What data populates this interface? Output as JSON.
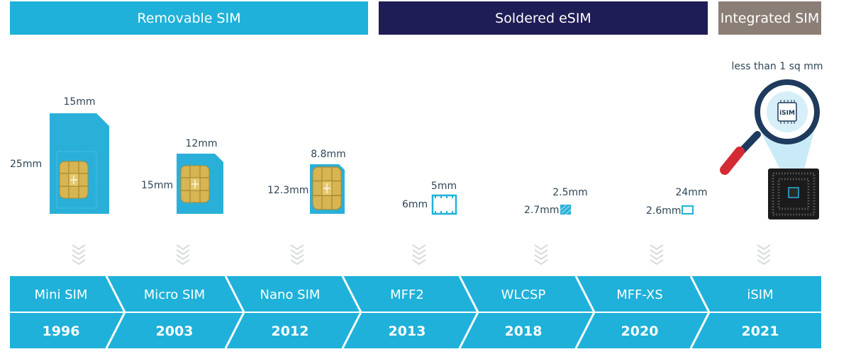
{
  "bands": {
    "removable": "Removable SIM",
    "soldered": "Soldered eSIM",
    "integrated": "Integrated SIM"
  },
  "dims": {
    "mini_w": "15mm",
    "mini_h": "25mm",
    "micro_w": "12mm",
    "micro_h": "15mm",
    "nano_w": "8.8mm",
    "nano_h": "12.3mm",
    "mff2_w": "5mm",
    "mff2_h": "6mm",
    "wlcsp_w": "2.5mm",
    "wlcsp_h": "2.7mm",
    "mffxs_w": "24mm",
    "mffxs_h": "2.6mm",
    "isim_size": "less than 1 sq mm",
    "isim_chip": "iSIM"
  },
  "timeline": [
    {
      "name": "Mini SIM",
      "year": "1996"
    },
    {
      "name": "Micro SIM",
      "year": "2003"
    },
    {
      "name": "Nano SIM",
      "year": "2012"
    },
    {
      "name": "MFF2",
      "year": "2013"
    },
    {
      "name": "WLCSP",
      "year": "2018"
    },
    {
      "name": "MFF-XS",
      "year": "2020"
    },
    {
      "name": "iSIM",
      "year": "2021"
    }
  ],
  "colors": {
    "removable": "#1fb1d9",
    "soldered": "#1e1d56",
    "integrated": "#8b7e76",
    "card": "#2ab0d8",
    "chip_gold": "#d6b552"
  }
}
